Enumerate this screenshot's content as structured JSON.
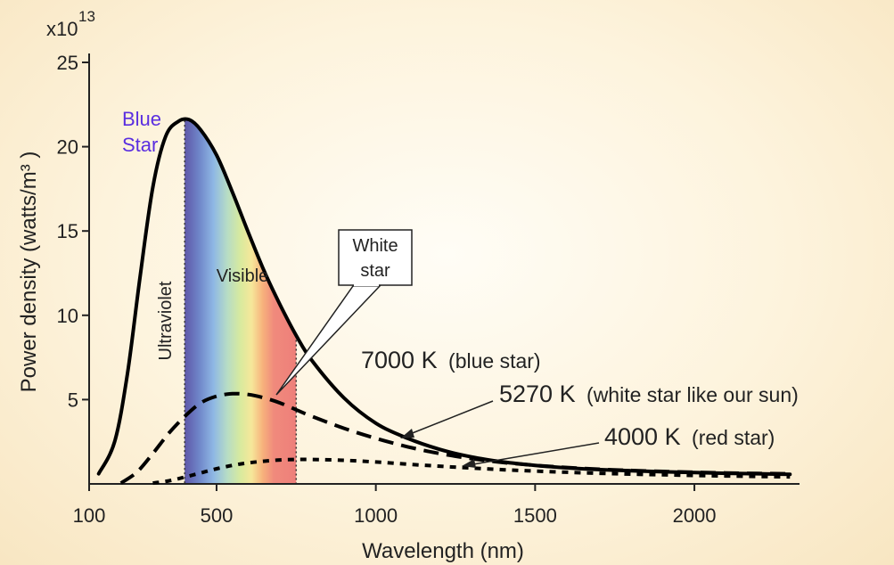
{
  "chart_data": {
    "type": "line",
    "xlabel": "Wavelength (nm)",
    "ylabel": "Power density (watts/m³ )",
    "y_multiplier": "x10",
    "y_multiplier_exp": "13",
    "xlim": [
      100,
      2330
    ],
    "ylim": [
      0,
      25
    ],
    "x_ticks": [
      100,
      500,
      1000,
      1500,
      2000
    ],
    "x_tick_labels": [
      "100",
      "500",
      "1000",
      "1500",
      "2000"
    ],
    "y_ticks": [
      5,
      10,
      15,
      20,
      25
    ],
    "y_tick_labels": [
      "5",
      "10",
      "15",
      "20",
      "25"
    ],
    "series": [
      {
        "name": "7000 K",
        "note": "(blue star)",
        "style": "solid",
        "x": [
          130,
          180,
          220,
          260,
          300,
          340,
          380,
          414,
          450,
          500,
          550,
          600,
          650,
          700,
          750,
          800,
          900,
          1000,
          1100,
          1200,
          1300,
          1400,
          1500,
          1600,
          1700,
          1800,
          1900,
          2000,
          2100,
          2200,
          2300
        ],
        "y": [
          0.6,
          2.5,
          6.5,
          12.3,
          17.6,
          20.6,
          21.5,
          21.6,
          21.0,
          19.5,
          17.3,
          14.9,
          12.6,
          10.6,
          8.8,
          7.3,
          5.1,
          3.6,
          2.7,
          2.05,
          1.6,
          1.3,
          1.1,
          0.95,
          0.85,
          0.78,
          0.72,
          0.67,
          0.63,
          0.6,
          0.57
        ]
      },
      {
        "name": "5270 K",
        "note": "(white star like our sun)",
        "style": "dashed",
        "x": [
          200,
          250,
          300,
          350,
          400,
          450,
          500,
          550,
          600,
          650,
          700,
          750,
          800,
          900,
          1000,
          1100,
          1200,
          1300,
          1400,
          1500,
          1600,
          1700,
          1800,
          1900,
          2000,
          2100,
          2200,
          2300
        ],
        "y": [
          0.05,
          0.7,
          1.8,
          3.0,
          4.0,
          4.8,
          5.2,
          5.35,
          5.3,
          5.1,
          4.8,
          4.4,
          4.0,
          3.3,
          2.7,
          2.2,
          1.8,
          1.5,
          1.27,
          1.1,
          0.97,
          0.87,
          0.8,
          0.74,
          0.69,
          0.65,
          0.62,
          0.6
        ]
      },
      {
        "name": "4000 K",
        "note": "(red star)",
        "style": "dotted",
        "x": [
          300,
          350,
          400,
          450,
          500,
          550,
          600,
          650,
          700,
          750,
          800,
          900,
          1000,
          1100,
          1200,
          1300,
          1400,
          1500,
          1600,
          1700,
          1800,
          1900,
          2000,
          2100,
          2200,
          2300
        ],
        "y": [
          0.05,
          0.18,
          0.4,
          0.65,
          0.9,
          1.1,
          1.25,
          1.35,
          1.42,
          1.45,
          1.45,
          1.4,
          1.3,
          1.17,
          1.05,
          0.94,
          0.84,
          0.76,
          0.69,
          0.63,
          0.58,
          0.54,
          0.5,
          0.47,
          0.44,
          0.42
        ]
      }
    ],
    "regions": [
      {
        "label": "Ultraviolet",
        "x_range": [
          100,
          400
        ]
      },
      {
        "label": "Visible",
        "x_range": [
          400,
          750
        ]
      }
    ],
    "annotations": {
      "blue_star": [
        "Blue",
        "Star"
      ],
      "white_star_callout": [
        "White",
        "star"
      ]
    },
    "grid": false,
    "legend": "inline labels"
  },
  "colors": {
    "line": "#000000",
    "blue_label": "#5a2ee0",
    "background": "#fdf3dc"
  }
}
